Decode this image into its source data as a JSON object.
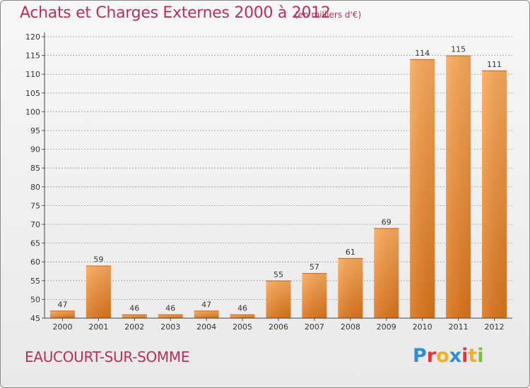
{
  "title": "Achats et Charges Externes 2000 à 2012",
  "unit_note": "(en milliers d'€)",
  "city": "EAUCOURT-SUR-SOMME",
  "brand": {
    "text": "Proxiti",
    "letters": [
      {
        "ch": "P",
        "color": "#2a8fd6"
      },
      {
        "ch": "r",
        "color": "#e8323c"
      },
      {
        "ch": "o",
        "color": "#f2b01e"
      },
      {
        "ch": "x",
        "color": "#2a8fd6"
      },
      {
        "ch": "i",
        "color": "#e8323c"
      },
      {
        "ch": "t",
        "color": "#f2b01e"
      },
      {
        "ch": "i",
        "color": "#7bbf3a"
      }
    ]
  },
  "colors": {
    "title": "#b5305c",
    "bar_light": "#f9a85a",
    "bar_dark": "#d9741b",
    "grid": "#9a9a9a",
    "axis_text": "#333333"
  },
  "chart_data": {
    "type": "bar",
    "categories": [
      "2000",
      "2001",
      "2002",
      "2003",
      "2004",
      "2005",
      "2006",
      "2007",
      "2008",
      "2009",
      "2010",
      "2011",
      "2012"
    ],
    "values": [
      47,
      59,
      46,
      46,
      47,
      46,
      55,
      57,
      61,
      69,
      114,
      115,
      111
    ],
    "data_labels": [
      "47",
      "59",
      "46",
      "46",
      "47",
      "46",
      "55",
      "57",
      "61",
      "69",
      "114",
      "115",
      "111"
    ],
    "ylim": [
      45,
      120
    ],
    "yticks": [
      45,
      50,
      55,
      60,
      65,
      70,
      75,
      80,
      85,
      90,
      95,
      100,
      105,
      110,
      115,
      120
    ],
    "grid": "horizontal dashed",
    "xlabel": "",
    "ylabel": ""
  }
}
